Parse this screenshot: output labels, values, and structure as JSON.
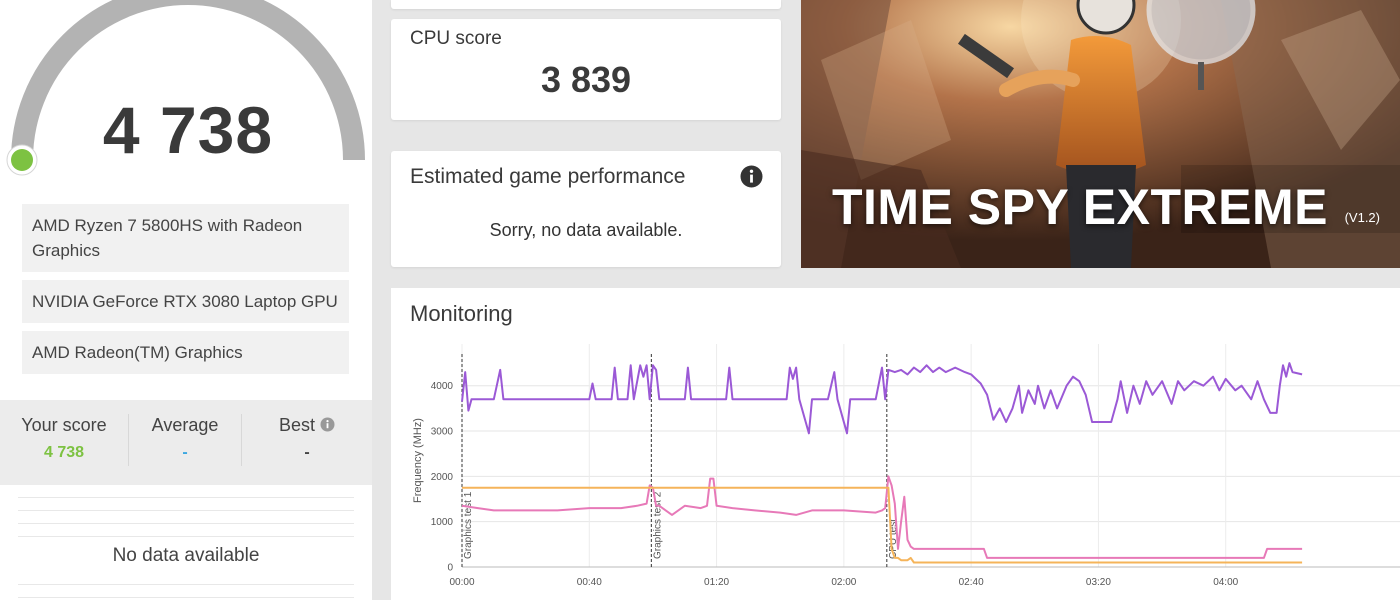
{
  "score": {
    "value": "4 738"
  },
  "hardware": [
    {
      "label": "AMD Ryzen 7 5800HS with Radeon Graphics"
    },
    {
      "label": "NVIDIA GeForce RTX 3080 Laptop GPU"
    },
    {
      "label": "AMD Radeon(TM) Graphics"
    }
  ],
  "comparison": {
    "your_score_label": "Your score",
    "your_score_value": "4 738",
    "average_label": "Average",
    "average_value": "-",
    "best_label": "Best",
    "best_value": "-"
  },
  "left_no_data": "No data available",
  "cpu_card": {
    "title": "CPU score",
    "value": "3 839"
  },
  "game_card": {
    "title": "Estimated game performance",
    "message": "Sorry, no data available.",
    "info_icon": "info-icon"
  },
  "hero": {
    "title": "TIME SPY EXTREME",
    "version": "(V1.2)"
  },
  "monitoring": {
    "title": "Monitoring"
  },
  "colors": {
    "accent_green": "#7dc242",
    "average_blue": "#3ba7e0",
    "purple": "#9b59d6",
    "pink": "#e779b8",
    "orange": "#f5b45a"
  },
  "chart_data": {
    "type": "line",
    "ylabel": "Frequency (MHz)",
    "ylim": [
      0,
      4700
    ],
    "yticks": [
      0,
      1000,
      2000,
      3000,
      4000
    ],
    "xlim": [
      0,
      280
    ],
    "xticks": [
      {
        "v": 0,
        "label": "00:00"
      },
      {
        "v": 40,
        "label": "00:40"
      },
      {
        "v": 80,
        "label": "01:20"
      },
      {
        "v": 120,
        "label": "02:00"
      },
      {
        "v": 160,
        "label": "02:40"
      },
      {
        "v": 200,
        "label": "03:20"
      },
      {
        "v": 240,
        "label": "04:00"
      }
    ],
    "markers": [
      {
        "v": 0,
        "label": "Graphics test 1"
      },
      {
        "v": 59.5,
        "label": "Graphics test 2"
      },
      {
        "v": 133.5,
        "label": "CPU test"
      }
    ],
    "series": [
      {
        "color": "#9b59d6",
        "points": [
          [
            0,
            3650
          ],
          [
            1,
            4300
          ],
          [
            2,
            3450
          ],
          [
            3,
            3700
          ],
          [
            10,
            3700
          ],
          [
            12,
            4350
          ],
          [
            13,
            3700
          ],
          [
            40,
            3700
          ],
          [
            41,
            4050
          ],
          [
            42,
            3700
          ],
          [
            47,
            3700
          ],
          [
            48,
            4400
          ],
          [
            49,
            3700
          ],
          [
            52,
            3700
          ],
          [
            53,
            4450
          ],
          [
            54,
            3700
          ],
          [
            56,
            4450
          ],
          [
            57,
            4200
          ],
          [
            58,
            4450
          ],
          [
            59,
            3700
          ],
          [
            60,
            4450
          ],
          [
            61,
            4350
          ],
          [
            62,
            3700
          ],
          [
            70,
            3700
          ],
          [
            71,
            4400
          ],
          [
            72,
            3700
          ],
          [
            83,
            3700
          ],
          [
            84,
            4400
          ],
          [
            85,
            3700
          ],
          [
            102,
            3700
          ],
          [
            103,
            4400
          ],
          [
            104,
            4150
          ],
          [
            105,
            4400
          ],
          [
            106,
            3700
          ],
          [
            108,
            3200
          ],
          [
            109,
            2950
          ],
          [
            110,
            3700
          ],
          [
            115,
            3700
          ],
          [
            117,
            4300
          ],
          [
            118,
            3700
          ],
          [
            121,
            2950
          ],
          [
            122,
            3700
          ],
          [
            130,
            3700
          ],
          [
            132,
            4400
          ],
          [
            133,
            3700
          ],
          [
            134,
            4350
          ],
          [
            136,
            4300
          ],
          [
            138,
            4350
          ],
          [
            140,
            4250
          ],
          [
            142,
            4400
          ],
          [
            144,
            4300
          ],
          [
            146,
            4450
          ],
          [
            148,
            4300
          ],
          [
            150,
            4400
          ],
          [
            152,
            4300
          ],
          [
            155,
            4400
          ],
          [
            158,
            4300
          ],
          [
            160,
            4250
          ],
          [
            163,
            4050
          ],
          [
            165,
            3800
          ],
          [
            167,
            3250
          ],
          [
            169,
            3500
          ],
          [
            171,
            3200
          ],
          [
            173,
            3500
          ],
          [
            175,
            4000
          ],
          [
            176,
            3400
          ],
          [
            178,
            3900
          ],
          [
            180,
            3600
          ],
          [
            181,
            4000
          ],
          [
            183,
            3500
          ],
          [
            185,
            3900
          ],
          [
            187,
            3500
          ],
          [
            190,
            4000
          ],
          [
            192,
            4200
          ],
          [
            194,
            4100
          ],
          [
            196,
            3800
          ],
          [
            198,
            3200
          ],
          [
            204,
            3200
          ],
          [
            206,
            3700
          ],
          [
            207,
            4100
          ],
          [
            209,
            3400
          ],
          [
            211,
            4000
          ],
          [
            213,
            3600
          ],
          [
            215,
            4100
          ],
          [
            217,
            3800
          ],
          [
            220,
            4100
          ],
          [
            223,
            3600
          ],
          [
            225,
            4100
          ],
          [
            227,
            3900
          ],
          [
            230,
            4100
          ],
          [
            233,
            4000
          ],
          [
            236,
            4200
          ],
          [
            238,
            3900
          ],
          [
            240,
            4150
          ],
          [
            243,
            3900
          ],
          [
            245,
            4000
          ],
          [
            248,
            3700
          ],
          [
            250,
            4100
          ],
          [
            252,
            3700
          ],
          [
            254,
            3400
          ],
          [
            256,
            3400
          ],
          [
            257,
            4000
          ],
          [
            258,
            4450
          ],
          [
            259,
            4200
          ],
          [
            260,
            4500
          ],
          [
            261,
            4300
          ],
          [
            264,
            4250
          ]
        ]
      },
      {
        "color": "#e779b8",
        "points": [
          [
            0,
            1350
          ],
          [
            5,
            1300
          ],
          [
            10,
            1250
          ],
          [
            20,
            1250
          ],
          [
            30,
            1250
          ],
          [
            40,
            1300
          ],
          [
            50,
            1300
          ],
          [
            55,
            1350
          ],
          [
            58,
            1400
          ],
          [
            59,
            1800
          ],
          [
            60,
            1750
          ],
          [
            61,
            1350
          ],
          [
            62,
            1350
          ],
          [
            64,
            1250
          ],
          [
            66,
            1150
          ],
          [
            69,
            1300
          ],
          [
            70,
            1350
          ],
          [
            75,
            1300
          ],
          [
            77,
            1350
          ],
          [
            78,
            1950
          ],
          [
            79,
            1950
          ],
          [
            80,
            1350
          ],
          [
            85,
            1300
          ],
          [
            92,
            1250
          ],
          [
            100,
            1200
          ],
          [
            105,
            1150
          ],
          [
            110,
            1250
          ],
          [
            115,
            1250
          ],
          [
            120,
            1250
          ],
          [
            130,
            1200
          ],
          [
            132,
            1250
          ],
          [
            133,
            1300
          ],
          [
            134,
            2000
          ],
          [
            135,
            1800
          ],
          [
            136,
            1400
          ],
          [
            137,
            400
          ],
          [
            138,
            1000
          ],
          [
            139,
            1550
          ],
          [
            140,
            600
          ],
          [
            141,
            450
          ],
          [
            142,
            400
          ],
          [
            146,
            400
          ],
          [
            150,
            400
          ],
          [
            164,
            400
          ],
          [
            165,
            200
          ],
          [
            180,
            200
          ],
          [
            200,
            200
          ],
          [
            220,
            200
          ],
          [
            240,
            200
          ],
          [
            252,
            200
          ],
          [
            253,
            400
          ],
          [
            264,
            400
          ]
        ]
      },
      {
        "color": "#f5b45a",
        "points": [
          [
            0,
            1750
          ],
          [
            133,
            1750
          ],
          [
            134,
            1750
          ],
          [
            135,
            400
          ],
          [
            136,
            200
          ],
          [
            137,
            200
          ],
          [
            138,
            150
          ],
          [
            140,
            150
          ],
          [
            141,
            200
          ],
          [
            142,
            100
          ],
          [
            264,
            100
          ]
        ]
      }
    ]
  }
}
